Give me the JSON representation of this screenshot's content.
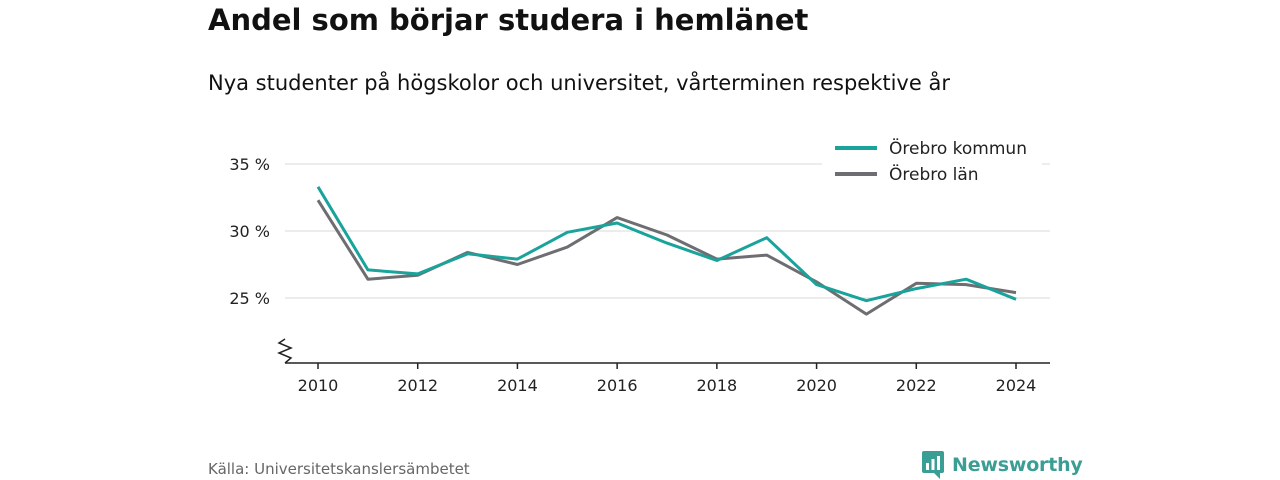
{
  "title": "Andel som börjar studera i hemlänet",
  "subtitle": "Nya studenter på högskolor och universitet, vårterminen respektive år",
  "source": "Källa: Universitetskanslersämbetet",
  "brand": "Newsworthy",
  "colors": {
    "brand": "#3a9e94",
    "kommun": "#1aa39a",
    "lan": "#6e6d72",
    "grid": "#d9d9d9",
    "axis": "#222222"
  },
  "chart_data": {
    "type": "line",
    "x": [
      2010,
      2011,
      2012,
      2013,
      2014,
      2015,
      2016,
      2017,
      2018,
      2019,
      2020,
      2021,
      2022,
      2023,
      2024
    ],
    "x_ticks": [
      2010,
      2012,
      2014,
      2016,
      2018,
      2020,
      2022,
      2024
    ],
    "y_ticks": [
      25,
      30,
      35
    ],
    "y_tick_labels": [
      "25 %",
      "30 %",
      "35 %"
    ],
    "ylim": [
      20,
      35
    ],
    "y_axis_broken": true,
    "grid": true,
    "legend_position": "top-right",
    "series": [
      {
        "name": "Örebro kommun",
        "color": "#1aa39a",
        "values": [
          33.3,
          27.1,
          26.8,
          28.3,
          27.9,
          29.9,
          30.6,
          29.1,
          27.8,
          29.5,
          26.0,
          24.8,
          25.7,
          26.4,
          24.9
        ]
      },
      {
        "name": "Örebro län",
        "color": "#6e6d72",
        "values": [
          32.3,
          26.4,
          26.7,
          28.4,
          27.5,
          28.8,
          31.0,
          29.7,
          27.9,
          28.2,
          26.2,
          23.8,
          26.1,
          26.0,
          25.4
        ]
      }
    ]
  }
}
